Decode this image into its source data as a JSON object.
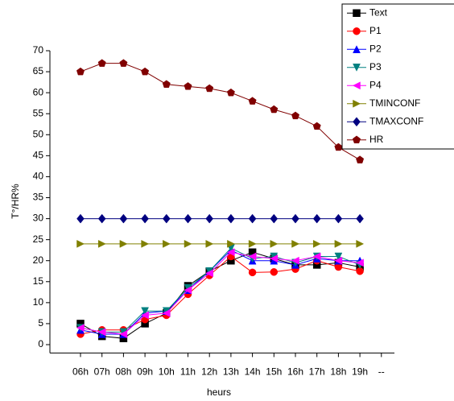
{
  "chart_data": {
    "type": "line",
    "xlabel": "heurs",
    "ylabel": "T°/HR%",
    "categories": [
      "06h",
      "07h",
      "08h",
      "09h",
      "10h",
      "11h",
      "12h",
      "13h",
      "14h",
      "15h",
      "16h",
      "17h",
      "18h",
      "19h",
      "--"
    ],
    "ylim": [
      -2,
      70
    ],
    "yticks": [
      0,
      5,
      10,
      15,
      20,
      25,
      30,
      35,
      40,
      45,
      50,
      55,
      60,
      65,
      70
    ],
    "legend": "upper right",
    "series": [
      {
        "name": "Text",
        "color": "#000000",
        "marker": "square",
        "values": [
          5,
          2,
          1.5,
          5,
          7.5,
          14,
          17.5,
          20,
          22,
          20.5,
          19,
          19,
          19.5,
          18.5,
          null
        ]
      },
      {
        "name": "P1",
        "color": "#ff0000",
        "marker": "circle",
        "values": [
          2.5,
          3.5,
          3.5,
          6,
          7,
          12,
          16.5,
          21,
          17.2,
          17.3,
          18,
          20,
          18.5,
          17.5,
          null
        ]
      },
      {
        "name": "P2",
        "color": "#0000ff",
        "marker": "triangle-up",
        "values": [
          3.5,
          2.5,
          2.5,
          7.5,
          8,
          13,
          17.5,
          22.5,
          20,
          20,
          19,
          20.5,
          20,
          20,
          null
        ]
      },
      {
        "name": "P3",
        "color": "#008080",
        "marker": "triangle-down",
        "values": [
          4,
          3,
          3,
          8,
          8,
          13.5,
          17.5,
          23,
          20.5,
          21,
          19.5,
          21,
          21,
          19,
          null
        ]
      },
      {
        "name": "P4",
        "color": "#ff00ff",
        "marker": "triangle-left",
        "values": [
          4,
          3,
          2.5,
          7,
          7.5,
          13,
          17,
          22,
          21,
          20.5,
          20,
          21,
          20,
          19.5,
          null
        ]
      },
      {
        "name": "TMINCONF",
        "color": "#808000",
        "marker": "triangle-right",
        "values": [
          24,
          24,
          24,
          24,
          24,
          24,
          24,
          24,
          24,
          24,
          24,
          24,
          24,
          24,
          null
        ]
      },
      {
        "name": "TMAXCONF",
        "color": "#000080",
        "marker": "diamond",
        "values": [
          30,
          30,
          30,
          30,
          30,
          30,
          30,
          30,
          30,
          30,
          30,
          30,
          30,
          30,
          null
        ]
      },
      {
        "name": "HR",
        "color": "#800000",
        "marker": "pentagon",
        "values": [
          65,
          67,
          67,
          65,
          62,
          61.5,
          61,
          60,
          58,
          56,
          54.5,
          52,
          47,
          44,
          null
        ]
      }
    ]
  }
}
